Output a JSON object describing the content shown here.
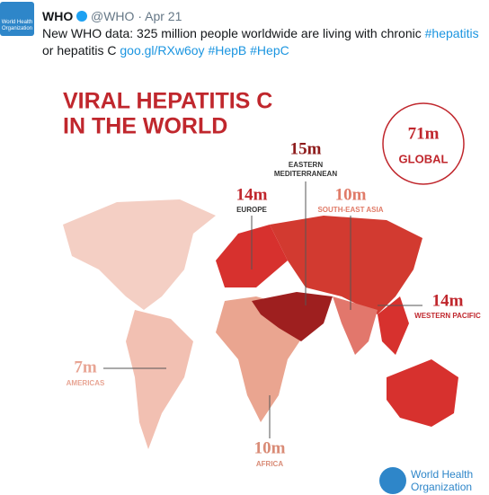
{
  "tweet": {
    "author": "WHO",
    "handle": "@WHO",
    "separator": "·",
    "date": "Apr 21",
    "line1": "New WHO data: 325 million people worldwide are living with chronic ",
    "line1_tag": "#hepatitis",
    "line2": "or hepatitis C ",
    "link": "goo.gl/RXw6oy",
    "tags": [
      "#HepB",
      "#HepC"
    ],
    "avatar_text": [
      "World Health",
      "Organization"
    ]
  },
  "infographic": {
    "title": [
      "VIRAL HEPATITIS C",
      "IN THE WORLD"
    ],
    "global": {
      "value": "71m",
      "label": "GLOBAL"
    },
    "regions": [
      {
        "value": "15m",
        "name": [
          "EASTERN",
          "MEDITERRANEAN"
        ]
      },
      {
        "value": "14m",
        "name": [
          "EUROPE"
        ]
      },
      {
        "value": "10m",
        "name": [
          "SOUTH-EAST ASIA"
        ]
      },
      {
        "value": "14m",
        "name": [
          "WESTERN PACIFIC"
        ]
      },
      {
        "value": "7m",
        "name": [
          "AMERICAS"
        ]
      },
      {
        "value": "10m",
        "name": [
          "AFRICA"
        ]
      }
    ],
    "logo": [
      "World Health",
      "Organization"
    ]
  }
}
